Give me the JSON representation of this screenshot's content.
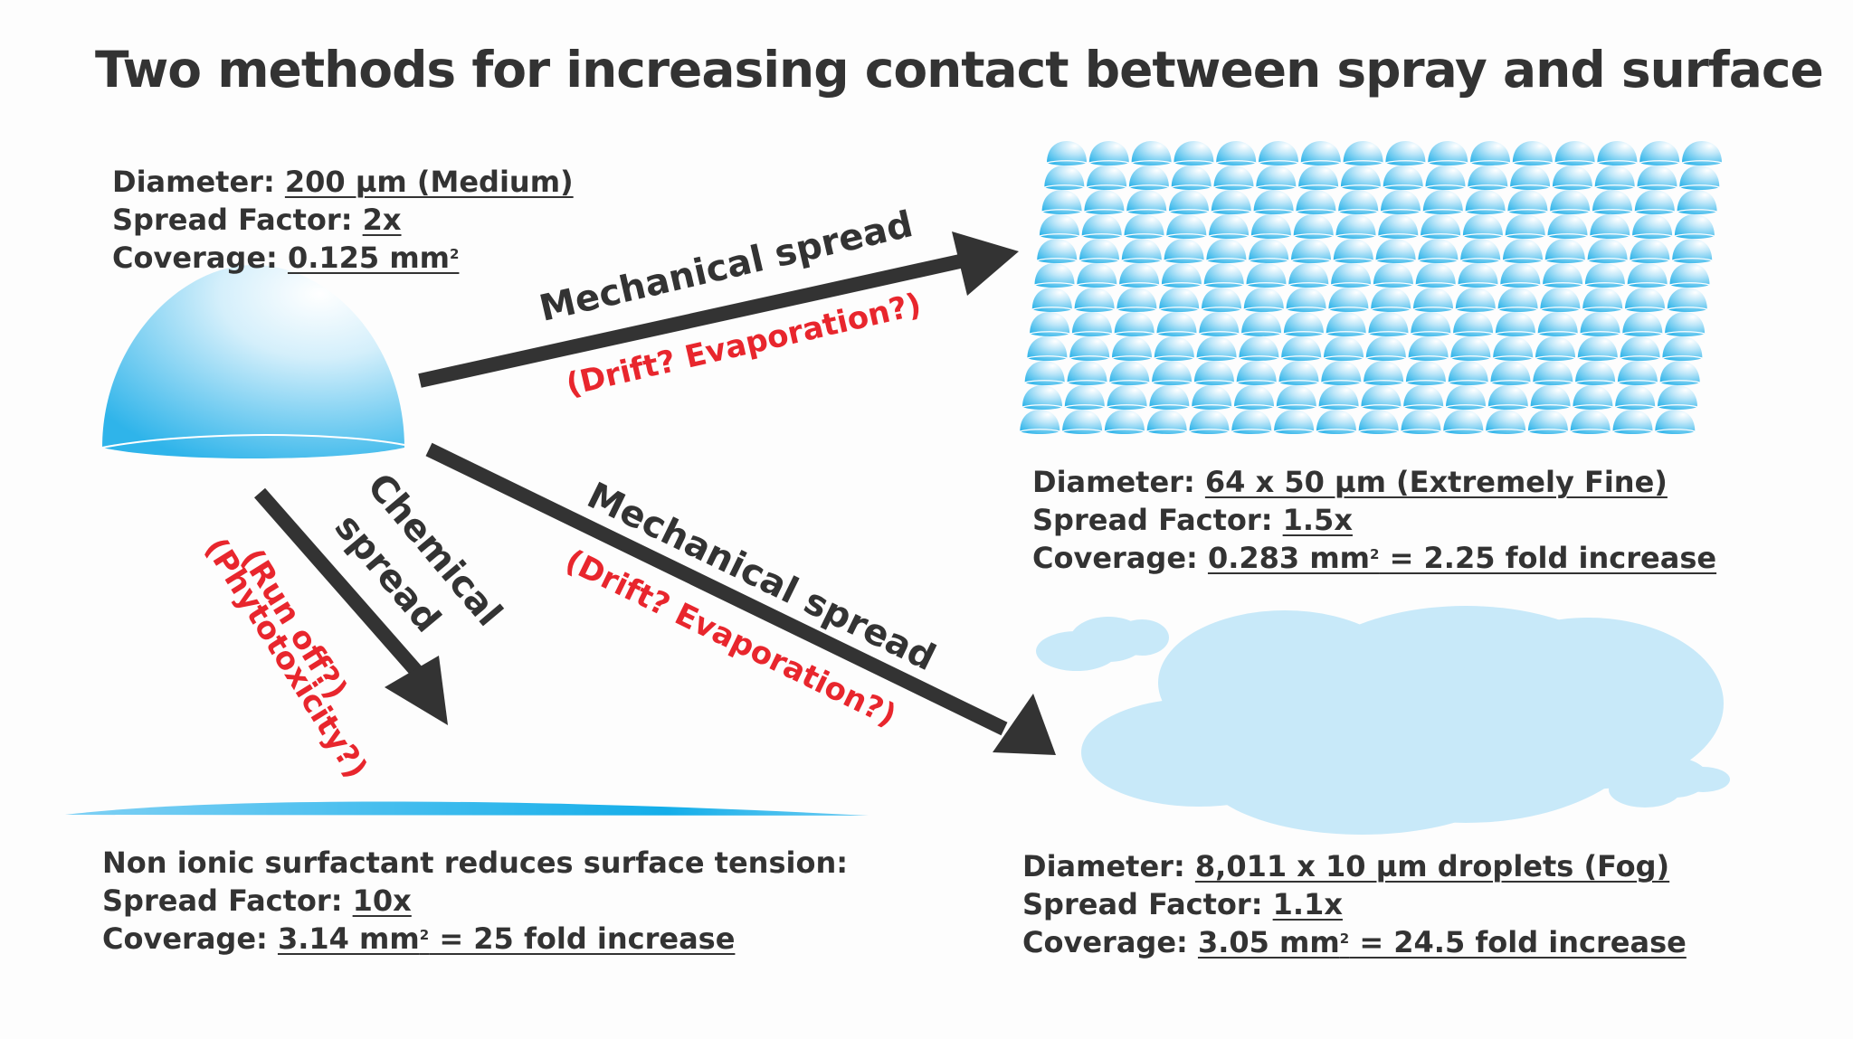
{
  "title": "Two methods for increasing contact between spray and surface",
  "colors": {
    "text": "#333333",
    "warning_red": "#e8262d",
    "droplet_blue": "#29b6ec",
    "fog_blue": "#c8e9f9",
    "arrow": "#333333"
  },
  "medium_droplet": {
    "diameter_label": "Diameter:",
    "diameter_value": "200 µm (Medium)",
    "spread_label": "Spread Factor:",
    "spread_value": "2x",
    "coverage_label": "Coverage:",
    "coverage_value": "0.125 mm",
    "coverage_sup": "2",
    "coverage_suffix": ""
  },
  "arrow_upper": {
    "label": "Mechanical spread",
    "risk": "(Drift? Evaporation?)"
  },
  "arrow_lower": {
    "label": "Mechanical spread",
    "risk": "(Drift? Evaporation?)"
  },
  "arrow_chemical": {
    "label_line1": "Chemical",
    "label_line2": "spread",
    "risk_line1": "(Run off?)",
    "risk_line2": "(Phytotoxicity?)"
  },
  "extremely_fine": {
    "diameter_label": "Diameter:",
    "diameter_value": "64 x 50 µm (Extremely Fine)",
    "spread_label": "Spread Factor:",
    "spread_value": "1.5x",
    "coverage_label": "Coverage:",
    "coverage_value": "0.283 mm",
    "coverage_sup": "2",
    "coverage_suffix": " = 2.25 fold increase",
    "grid": {
      "rows": 12,
      "cols": 16
    }
  },
  "fog": {
    "diameter_label": "Diameter:",
    "diameter_value": "8,011 x 10 µm droplets (Fog)",
    "spread_label": "Spread Factor:",
    "spread_value": "1.1x",
    "coverage_label": "Coverage:",
    "coverage_value": "3.05 mm",
    "coverage_sup": "2",
    "coverage_suffix": " = 24.5 fold increase"
  },
  "surfactant": {
    "heading": "Non ionic surfactant reduces surface tension:",
    "spread_label": "Spread Factor:",
    "spread_value": "10x",
    "coverage_label": "Coverage:",
    "coverage_value": "3.14 mm",
    "coverage_sup": "2",
    "coverage_suffix": " = 25 fold increase"
  }
}
